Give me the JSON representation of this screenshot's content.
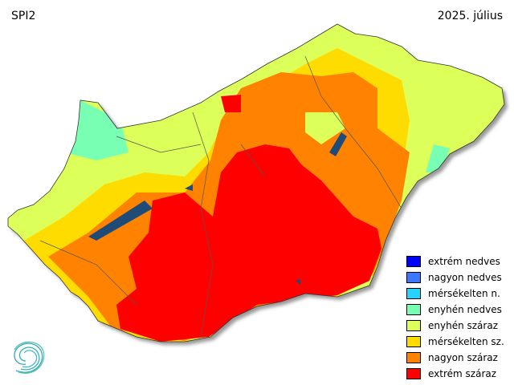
{
  "header": {
    "index": "SPI2",
    "period": "2025. július"
  },
  "legend": [
    {
      "label": "extrém nedves",
      "color": "#0000ff"
    },
    {
      "label": "nagyon nedves",
      "color": "#3c78ff"
    },
    {
      "label": "mérsékelten n.",
      "color": "#28d2ff"
    },
    {
      "label": "enyhén nedves",
      "color": "#78ffb4"
    },
    {
      "label": "enyhén száraz",
      "color": "#dcff5a"
    },
    {
      "label": "mérsékelten sz.",
      "color": "#ffdc00"
    },
    {
      "label": "nagyon száraz",
      "color": "#ff8200"
    },
    {
      "label": "extrém száraz",
      "color": "#ff0000"
    }
  ],
  "lake_color": "#1e4b78",
  "logo": "weather-service-spiral-logo"
}
